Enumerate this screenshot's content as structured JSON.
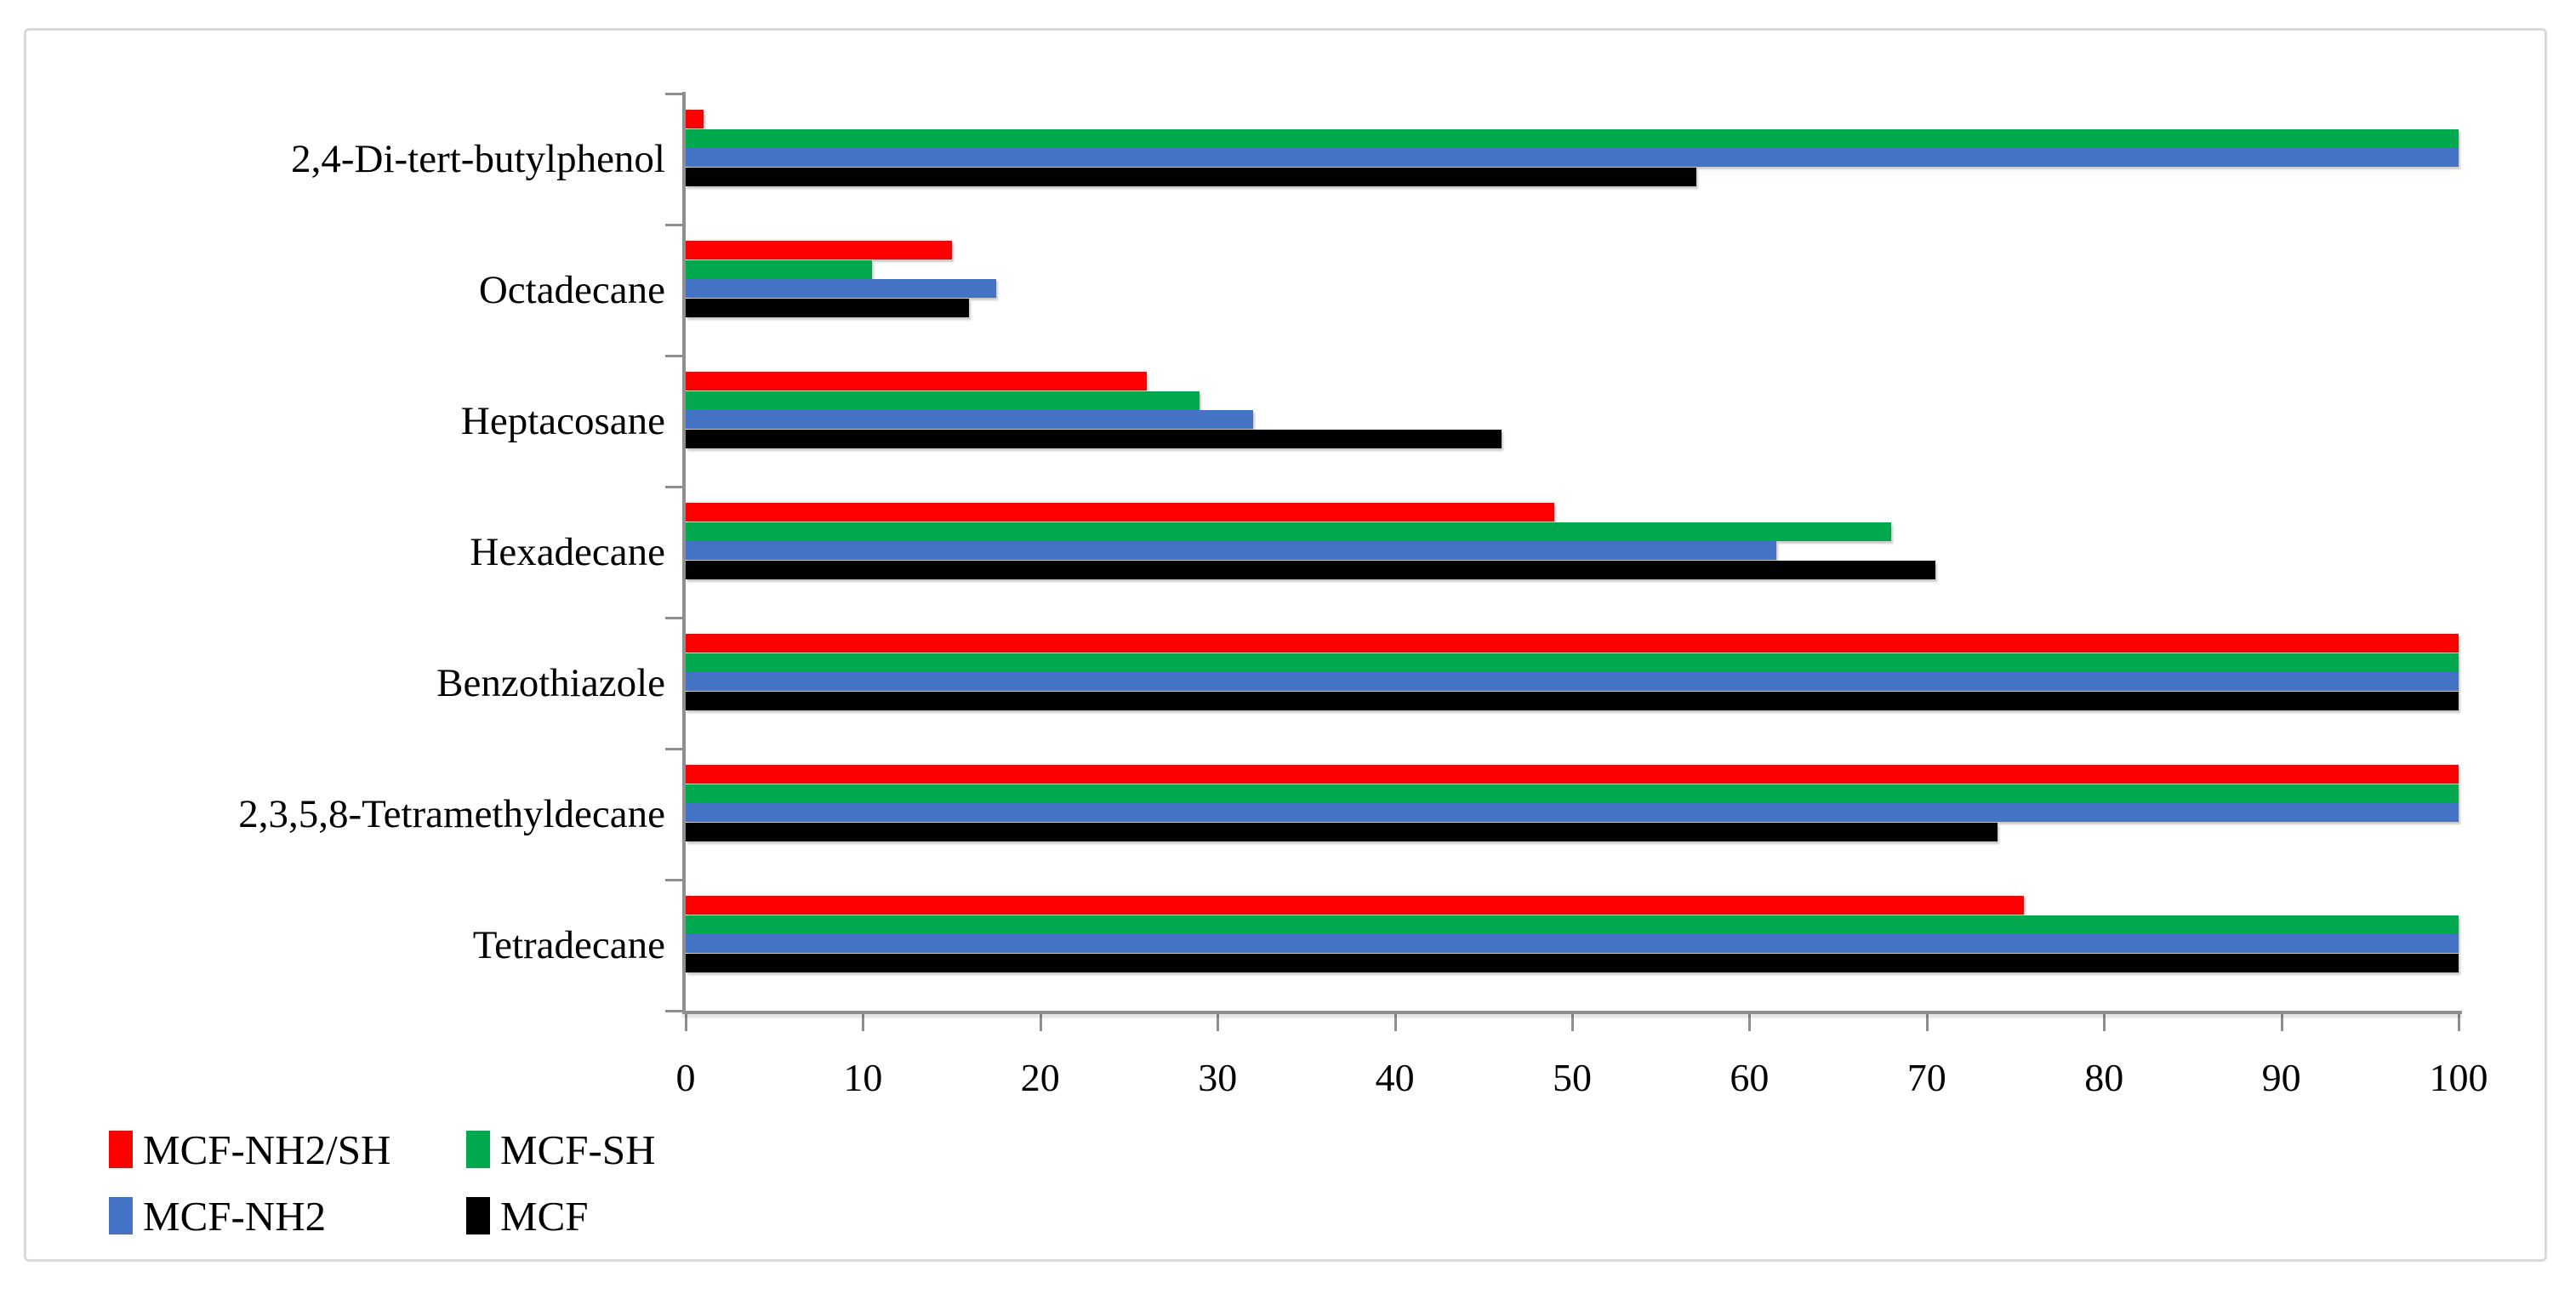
{
  "chart_data": {
    "type": "bar",
    "orientation": "horizontal",
    "title": "",
    "xlabel": "",
    "ylabel": "",
    "xlim": [
      0,
      100
    ],
    "x_ticks": [
      0,
      10,
      20,
      30,
      40,
      50,
      60,
      70,
      80,
      90,
      100
    ],
    "grid": false,
    "legend_position": "bottom-left",
    "categories": [
      "2,4-Di-tert-butylphenol",
      "Octadecane",
      "Heptacosane",
      "Hexadecane",
      "Benzothiazole",
      "2,3,5,8-Tetramethyldecane",
      "Tetradecane"
    ],
    "series": [
      {
        "name": "MCF-NH2/SH",
        "color": "#ff0000",
        "values": [
          1,
          15,
          26,
          49,
          100,
          100,
          75.5
        ]
      },
      {
        "name": "MCF-SH",
        "color": "#00a94e",
        "values": [
          100,
          10.5,
          29,
          68,
          100,
          100,
          100
        ]
      },
      {
        "name": "MCF-NH2",
        "color": "#4472c4",
        "values": [
          100,
          17.5,
          32,
          61.5,
          100,
          100,
          100
        ]
      },
      {
        "name": "MCF",
        "color": "#000000",
        "values": [
          57,
          16,
          46,
          70.5,
          100,
          74,
          100
        ]
      }
    ],
    "series_draw_order": "top-to-bottom within each category group",
    "axis_color_hex": "#8f8f8f",
    "frame_border_color_hex": "#d9d9d9"
  },
  "legend": {
    "items": [
      {
        "label": "MCF-NH2/SH",
        "color": "#ff0000"
      },
      {
        "label": "MCF-SH",
        "color": "#00a94e"
      },
      {
        "label": "MCF-NH2",
        "color": "#4472c4"
      },
      {
        "label": "MCF",
        "color": "#000000"
      }
    ]
  }
}
